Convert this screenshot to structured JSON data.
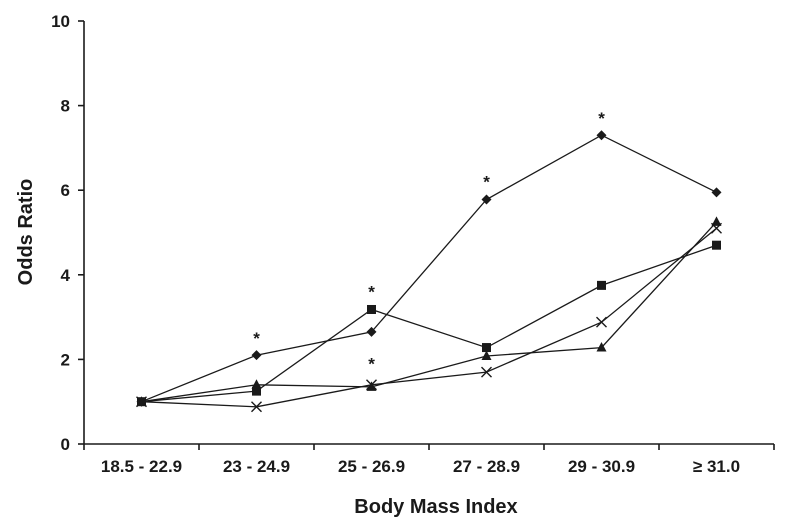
{
  "chart_data": {
    "type": "line",
    "title": "",
    "xlabel": "Body Mass Index",
    "ylabel": "Odds Ratio",
    "ylim": [
      0,
      10
    ],
    "yticks": [
      "0",
      "2",
      "4",
      "6",
      "8",
      "10"
    ],
    "grid": false,
    "legend": "none",
    "categories": [
      "18.5 - 22.9",
      "23 - 24.9",
      "25 - 26.9",
      "27 - 28.9",
      "29 - 30.9",
      "≥ 31.0"
    ],
    "series": [
      {
        "marker": "diamond",
        "values": [
          1.0,
          2.1,
          2.65,
          5.78,
          7.3,
          5.95
        ]
      },
      {
        "marker": "square",
        "values": [
          1.0,
          1.25,
          3.18,
          2.28,
          3.75,
          4.7
        ]
      },
      {
        "marker": "triangle",
        "values": [
          1.0,
          1.4,
          1.35,
          2.08,
          2.28,
          5.25
        ]
      },
      {
        "marker": "x",
        "values": [
          1.0,
          0.88,
          1.4,
          1.7,
          2.88,
          5.1
        ]
      }
    ],
    "annotations": [
      {
        "text": "*",
        "category": "23 - 24.9",
        "y": 2.55
      },
      {
        "text": "*",
        "category": "25 - 26.9",
        "y": 3.65
      },
      {
        "text": "*",
        "category": "25 - 26.9",
        "y": 1.95
      },
      {
        "text": "*",
        "category": "27 - 28.9",
        "y": 6.25
      },
      {
        "text": "*",
        "category": "29 - 30.9",
        "y": 7.75
      }
    ]
  }
}
